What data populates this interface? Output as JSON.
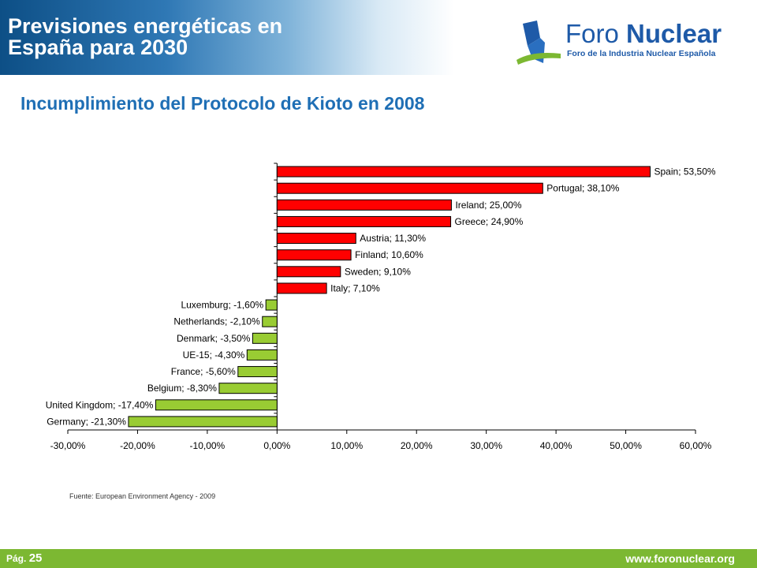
{
  "header": {
    "title_line1": "Previsiones energéticas en",
    "title_line2": "España para 2030",
    "logo_name_part1": "Foro ",
    "logo_name_part2": "Nuclear",
    "logo_subtitle": "Foro de la Industria Nuclear Española"
  },
  "slide_title": "Incumplimiento del Protocolo de Kioto en 2008",
  "source": "Fuente: European Environment Agency - 2009",
  "footer": {
    "page_label": "Pág.",
    "page_number": "25",
    "url": "www.foronuclear.org"
  },
  "colors": {
    "positive_bar": "#ff0000",
    "negative_bar": "#99cc33",
    "title_blue": "#1f6fb5",
    "footer_green": "#7cb832"
  },
  "chart_data": {
    "type": "bar",
    "orientation": "horizontal",
    "title": "",
    "xlabel": "",
    "ylabel": "",
    "xlim": [
      -30,
      60
    ],
    "x_ticks": [
      -30,
      -20,
      -10,
      0,
      10,
      20,
      30,
      40,
      50,
      60
    ],
    "x_tick_labels": [
      "-30,00%",
      "-20,00%",
      "-10,00%",
      "0,00%",
      "10,00%",
      "20,00%",
      "30,00%",
      "40,00%",
      "50,00%",
      "60,00%"
    ],
    "grid": false,
    "legend": "none",
    "categories": [
      "Spain",
      "Portugal",
      "Ireland",
      "Greece",
      "Austria",
      "Finland",
      "Sweden",
      "Italy",
      "Luxemburg",
      "Netherlands",
      "Denmark",
      "UE-15",
      "France",
      "Belgium",
      "United Kingdom",
      "Germany"
    ],
    "values": [
      53.5,
      38.1,
      25.0,
      24.9,
      11.3,
      10.6,
      9.1,
      7.1,
      -1.6,
      -2.1,
      -3.5,
      -4.3,
      -5.6,
      -8.3,
      -17.4,
      -21.3
    ],
    "data_labels": [
      "Spain; 53,50%",
      "Portugal; 38,10%",
      "Ireland; 25,00%",
      "Greece; 24,90%",
      "Austria; 11,30%",
      "Finland; 10,60%",
      "Sweden; 9,10%",
      "Italy; 7,10%",
      "Luxemburg; -1,60%",
      "Netherlands; -2,10%",
      "Denmark; -3,50%",
      "UE-15; -4,30%",
      "France; -5,60%",
      "Belgium; -8,30%",
      "United Kingdom; -17,40%",
      "Germany; -21,30%"
    ]
  }
}
